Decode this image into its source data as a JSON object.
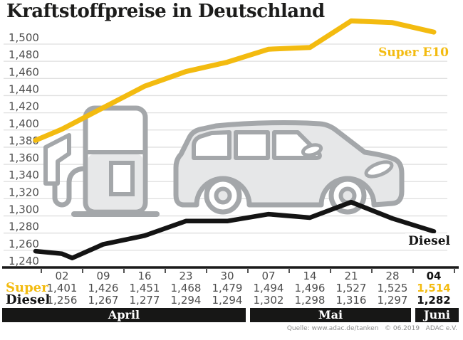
{
  "title": "Kraftstoffpreise in Deutschland",
  "source": "Quelle: www.adac.de/tanken   © 06.2019   ADAC e.V.",
  "colors": {
    "grid_line": "#dfdfdf",
    "axis": "#1a1a1a",
    "table_text": "#4d4d4d",
    "emphasis_text": "#111111",
    "icon_stroke": "#a4a7aa",
    "icon_fill": "#e6e7e8",
    "month_bar_bg": "#171716",
    "month_bar_text": "#ffffff"
  },
  "chart_data": {
    "type": "line",
    "title": "Kraftstoffpreise in Deutschland",
    "x_tick_labels": [
      "02",
      "09",
      "16",
      "23",
      "30",
      "07",
      "14",
      "21",
      "28",
      "04"
    ],
    "months": [
      {
        "label": "April",
        "columns": 5
      },
      {
        "label": "Mai",
        "columns": 4
      },
      {
        "label": "Juni",
        "columns": 1
      }
    ],
    "ylim": [
      1240,
      1500
    ],
    "ytick_step": 20,
    "grid": true,
    "legend_position": "inline-right",
    "number_format": "comma-decimal-thousandths",
    "series": [
      {
        "name": "Super E10",
        "table_label": "Super",
        "color": "#f3bb10",
        "values": [
          1401,
          1426,
          1451,
          1468,
          1479,
          1494,
          1496,
          1527,
          1525,
          1514
        ],
        "draw_points": [
          [
            -0.64,
            1388
          ],
          [
            0,
            1401
          ],
          [
            1,
            1426
          ],
          [
            2,
            1451
          ],
          [
            3,
            1468
          ],
          [
            4,
            1479
          ],
          [
            5,
            1494
          ],
          [
            6,
            1496
          ],
          [
            7,
            1527
          ],
          [
            8,
            1525
          ],
          [
            9,
            1514
          ]
        ]
      },
      {
        "name": "Diesel",
        "table_label": "Diesel",
        "color": "#141414",
        "values": [
          1256,
          1267,
          1277,
          1294,
          1294,
          1302,
          1298,
          1316,
          1297,
          1282
        ],
        "draw_points": [
          [
            -0.64,
            1259
          ],
          [
            0,
            1256
          ],
          [
            0.25,
            1251
          ],
          [
            1,
            1267
          ],
          [
            2,
            1277
          ],
          [
            3,
            1294
          ],
          [
            4,
            1294
          ],
          [
            5,
            1302
          ],
          [
            6,
            1298
          ],
          [
            7,
            1316
          ],
          [
            8,
            1297
          ],
          [
            9,
            1282
          ]
        ]
      }
    ]
  }
}
